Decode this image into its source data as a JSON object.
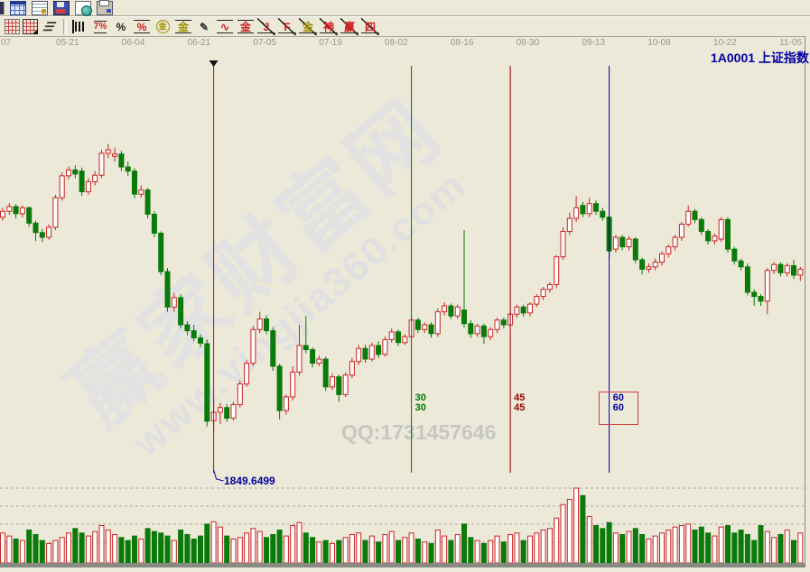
{
  "window": {
    "bg": "#ece9d8"
  },
  "toolbar": {
    "row1": [
      {
        "name": "window-partial-icon"
      },
      {
        "name": "spreadsheet-icon"
      },
      {
        "name": "report-icon"
      },
      {
        "name": "save-icon"
      },
      {
        "name": "send-web-icon"
      },
      {
        "name": "print-icon"
      }
    ],
    "row2": [
      {
        "name": "merge-grid-icon",
        "glyph": "",
        "color": "#cc4444",
        "deco": "hatch"
      },
      {
        "name": "axis-grid-icon",
        "glyph": "",
        "color": "#cc4444",
        "deco": "hatcharrow"
      },
      {
        "name": "trend-lines-icon",
        "glyph": "☰",
        "color": "#333333",
        "deco": "skew"
      },
      {
        "name": "volume-ladder-icon",
        "glyph": "",
        "color": "#222222",
        "deco": "bars"
      },
      {
        "name": "percent-line-icon",
        "glyph": "7%",
        "color": "#cc2222",
        "deco": "overunder"
      },
      {
        "name": "percent-icon",
        "glyph": "%",
        "color": "#222222",
        "deco": "plain"
      },
      {
        "name": "percent-lines-icon",
        "glyph": "%",
        "color": "#cc2222",
        "deco": "lines"
      },
      {
        "name": "gold-circle-icon",
        "glyph": "金",
        "color": "#a09000",
        "deco": "circle"
      },
      {
        "name": "gold-lines-icon",
        "glyph": "金",
        "color": "#a09000",
        "deco": "lines"
      },
      {
        "name": "brush-icon",
        "glyph": "✎",
        "color": "#333333",
        "deco": "plain"
      },
      {
        "name": "wave-lines-icon",
        "glyph": "∿",
        "color": "#cc2222",
        "deco": "lines"
      },
      {
        "name": "gold-red-lines-icon",
        "glyph": "金",
        "color": "#cc2222",
        "deco": "lines"
      },
      {
        "name": "j-angle-icon",
        "glyph": "J",
        "color": "#cc2222",
        "deco": "strike"
      },
      {
        "name": "f-angle-icon",
        "glyph": "F",
        "color": "#cc2222",
        "deco": "strike"
      },
      {
        "name": "gold-angle-icon",
        "glyph": "金",
        "color": "#a09000",
        "deco": "strike"
      },
      {
        "name": "shen-angle-icon",
        "glyph": "神",
        "color": "#cc2222",
        "deco": "strike"
      },
      {
        "name": "ying-angle-icon",
        "glyph": "赢",
        "color": "#cc2222",
        "deco": "strike"
      },
      {
        "name": "si-angle-icon",
        "glyph": "四",
        "color": "#cc2222",
        "deco": "strike"
      }
    ]
  },
  "header": {
    "symbol_title": "1A0001  上证指数"
  },
  "watermark": {
    "brand": "赢家财富网",
    "url": "www.yingjia360.com",
    "qq": "QQ:1731457646"
  },
  "chart_data": {
    "type": "candlestick",
    "symbol": "1A0001",
    "symbol_name": "上证指数",
    "x_ticks": [
      "07",
      "05-21",
      "06-04",
      "06-21",
      "07-05",
      "07-19",
      "08-02",
      "08-16",
      "08-30",
      "09-13",
      "10-08",
      "10-22",
      "11-05"
    ],
    "ylim": [
      1763,
      2500
    ],
    "grid": "volume-pane dashed only",
    "low_annotation": {
      "text": "1849.6499",
      "color": "#000099"
    },
    "anchor_line": {
      "bar_index": 32,
      "color": "#cc0000",
      "marker": "down-triangle"
    },
    "cycle_lines": [
      {
        "bar_index": 62,
        "label": "30",
        "color": "#007700",
        "boxed": false
      },
      {
        "bar_index": 77,
        "label": "45",
        "color": "#990000",
        "boxed": false
      },
      {
        "bar_index": 92,
        "label": "60",
        "color": "#000099",
        "boxed": true
      }
    ],
    "colors": {
      "up": "#cc2222",
      "down": "#0a7a0a",
      "grid": "#a8a8a8",
      "up_fill": "#ffffff"
    },
    "candles": [
      [
        2212,
        2228,
        2206,
        2222
      ],
      [
        2222,
        2236,
        2216,
        2230
      ],
      [
        2230,
        2234,
        2210,
        2218
      ],
      [
        2218,
        2232,
        2212,
        2228
      ],
      [
        2228,
        2230,
        2196,
        2202
      ],
      [
        2202,
        2206,
        2172,
        2186
      ],
      [
        2186,
        2192,
        2170,
        2178
      ],
      [
        2178,
        2200,
        2174,
        2195
      ],
      [
        2195,
        2250,
        2190,
        2245
      ],
      [
        2245,
        2288,
        2240,
        2282
      ],
      [
        2282,
        2298,
        2276,
        2292
      ],
      [
        2292,
        2300,
        2278,
        2285
      ],
      [
        2290,
        2296,
        2248,
        2255
      ],
      [
        2255,
        2278,
        2250,
        2272
      ],
      [
        2272,
        2290,
        2266,
        2283
      ],
      [
        2283,
        2326,
        2278,
        2320
      ],
      [
        2320,
        2336,
        2312,
        2326
      ],
      [
        2315,
        2330,
        2306,
        2319
      ],
      [
        2319,
        2324,
        2290,
        2297
      ],
      [
        2297,
        2306,
        2282,
        2290
      ],
      [
        2290,
        2295,
        2244,
        2251
      ],
      [
        2251,
        2266,
        2245,
        2258
      ],
      [
        2258,
        2262,
        2210,
        2217
      ],
      [
        2217,
        2222,
        2178,
        2185
      ],
      [
        2185,
        2188,
        2114,
        2120
      ],
      [
        2120,
        2126,
        2052,
        2060
      ],
      [
        2060,
        2084,
        2052,
        2076
      ],
      [
        2076,
        2082,
        2024,
        2030
      ],
      [
        2030,
        2036,
        2012,
        2020
      ],
      [
        2020,
        2030,
        2002,
        2008
      ],
      [
        2008,
        2014,
        1992,
        1999
      ],
      [
        1998,
        2005,
        1858,
        1867
      ],
      [
        1868,
        1900,
        1849.65,
        1882
      ],
      [
        1882,
        1898,
        1862,
        1890
      ],
      [
        1890,
        1896,
        1866,
        1872
      ],
      [
        1872,
        1900,
        1868,
        1895
      ],
      [
        1895,
        1936,
        1890,
        1930
      ],
      [
        1930,
        1970,
        1925,
        1965
      ],
      [
        1965,
        2028,
        1960,
        2022
      ],
      [
        2022,
        2052,
        2016,
        2040
      ],
      [
        2040,
        2046,
        2014,
        2020
      ],
      [
        2020,
        2026,
        1952,
        1960
      ],
      [
        1960,
        1964,
        1870,
        1885
      ],
      [
        1885,
        1912,
        1878,
        1908
      ],
      [
        1908,
        1960,
        1902,
        1950
      ],
      [
        1950,
        2030,
        1944,
        1995
      ],
      [
        1995,
        2045,
        1982,
        1988
      ],
      [
        1988,
        1992,
        1958,
        1965
      ],
      [
        1965,
        1978,
        1960,
        1972
      ],
      [
        1972,
        1976,
        1918,
        1925
      ],
      [
        1925,
        1948,
        1920,
        1942
      ],
      [
        1942,
        1946,
        1900,
        1912
      ],
      [
        1912,
        1950,
        1908,
        1945
      ],
      [
        1945,
        1974,
        1940,
        1968
      ],
      [
        1968,
        1996,
        1962,
        1990
      ],
      [
        1990,
        1996,
        1966,
        1972
      ],
      [
        1972,
        2000,
        1968,
        1995
      ],
      [
        1995,
        2002,
        1974,
        1980
      ],
      [
        1980,
        2010,
        1976,
        2005
      ],
      [
        2005,
        2024,
        2000,
        2018
      ],
      [
        2018,
        2022,
        1994,
        2000
      ],
      [
        2000,
        2014,
        1996,
        2010
      ],
      [
        2010,
        2044,
        2006,
        2038
      ],
      [
        2038,
        2042,
        2016,
        2022
      ],
      [
        2022,
        2034,
        2016,
        2030
      ],
      [
        2030,
        2034,
        2008,
        2015
      ],
      [
        2015,
        2058,
        2010,
        2052
      ],
      [
        2052,
        2068,
        2046,
        2062
      ],
      [
        2062,
        2066,
        2040,
        2045
      ],
      [
        2045,
        2064,
        2040,
        2060
      ],
      [
        2055,
        2190,
        2025,
        2032
      ],
      [
        2032,
        2038,
        2008,
        2015
      ],
      [
        2015,
        2032,
        2010,
        2028
      ],
      [
        2028,
        2032,
        1998,
        2010
      ],
      [
        2010,
        2026,
        2004,
        2022
      ],
      [
        2022,
        2042,
        2016,
        2038
      ],
      [
        2038,
        2042,
        2024,
        2030
      ],
      [
        2030,
        2052,
        2026,
        2048
      ],
      [
        2048,
        2064,
        2042,
        2060
      ],
      [
        2060,
        2064,
        2044,
        2050
      ],
      [
        2050,
        2068,
        2044,
        2065
      ],
      [
        2065,
        2082,
        2060,
        2078
      ],
      [
        2078,
        2094,
        2072,
        2090
      ],
      [
        2090,
        2102,
        2084,
        2098
      ],
      [
        2098,
        2148,
        2092,
        2145
      ],
      [
        2145,
        2195,
        2140,
        2188
      ],
      [
        2188,
        2220,
        2182,
        2210
      ],
      [
        2210,
        2248,
        2204,
        2228
      ],
      [
        2232,
        2238,
        2212,
        2218
      ],
      [
        2218,
        2245,
        2212,
        2235
      ],
      [
        2235,
        2240,
        2216,
        2222
      ],
      [
        2222,
        2228,
        2206,
        2212
      ],
      [
        2212,
        2216,
        2142,
        2155
      ],
      [
        2158,
        2182,
        2152,
        2178
      ],
      [
        2178,
        2182,
        2156,
        2162
      ],
      [
        2162,
        2180,
        2156,
        2175
      ],
      [
        2175,
        2178,
        2134,
        2140
      ],
      [
        2140,
        2144,
        2115,
        2124
      ],
      [
        2124,
        2134,
        2118,
        2128
      ],
      [
        2128,
        2142,
        2122,
        2136
      ],
      [
        2136,
        2154,
        2130,
        2150
      ],
      [
        2150,
        2166,
        2144,
        2162
      ],
      [
        2162,
        2182,
        2156,
        2178
      ],
      [
        2178,
        2204,
        2172,
        2200
      ],
      [
        2200,
        2232,
        2196,
        2222
      ],
      [
        2222,
        2226,
        2202,
        2208
      ],
      [
        2208,
        2212,
        2182,
        2188
      ],
      [
        2188,
        2192,
        2166,
        2172
      ],
      [
        2172,
        2184,
        2166,
        2180
      ],
      [
        2175,
        2212,
        2170,
        2208
      ],
      [
        2208,
        2212,
        2152,
        2158
      ],
      [
        2158,
        2162,
        2132,
        2138
      ],
      [
        2138,
        2142,
        2122,
        2128
      ],
      [
        2128,
        2134,
        2080,
        2085
      ],
      [
        2085,
        2090,
        2062,
        2078
      ],
      [
        2078,
        2082,
        2062,
        2070
      ],
      [
        2070,
        2126,
        2048,
        2122
      ],
      [
        2122,
        2136,
        2116,
        2132
      ],
      [
        2132,
        2136,
        2112,
        2118
      ],
      [
        2118,
        2134,
        2112,
        2130
      ],
      [
        2130,
        2140,
        2108,
        2114
      ],
      [
        2114,
        2128,
        2104,
        2124
      ]
    ],
    "volumes": [
      40,
      36,
      32,
      30,
      44,
      38,
      30,
      26,
      30,
      34,
      40,
      46,
      40,
      36,
      42,
      50,
      44,
      38,
      34,
      30,
      36,
      32,
      46,
      42,
      40,
      36,
      30,
      44,
      38,
      32,
      36,
      52,
      55,
      48,
      36,
      32,
      34,
      40,
      46,
      42,
      34,
      38,
      44,
      36,
      50,
      54,
      40,
      34,
      28,
      30,
      26,
      30,
      34,
      38,
      40,
      30,
      36,
      28,
      38,
      42,
      30,
      34,
      40,
      32,
      28,
      26,
      44,
      36,
      30,
      38,
      52,
      34,
      30,
      26,
      30,
      36,
      28,
      38,
      40,
      30,
      36,
      40,
      44,
      46,
      60,
      78,
      85,
      100,
      90,
      62,
      50,
      46,
      54,
      40,
      38,
      42,
      46,
      38,
      32,
      36,
      40,
      44,
      48,
      50,
      52,
      44,
      48,
      40,
      36,
      48,
      50,
      40,
      44,
      38,
      30,
      50,
      42,
      34,
      38,
      44,
      30,
      40
    ]
  }
}
